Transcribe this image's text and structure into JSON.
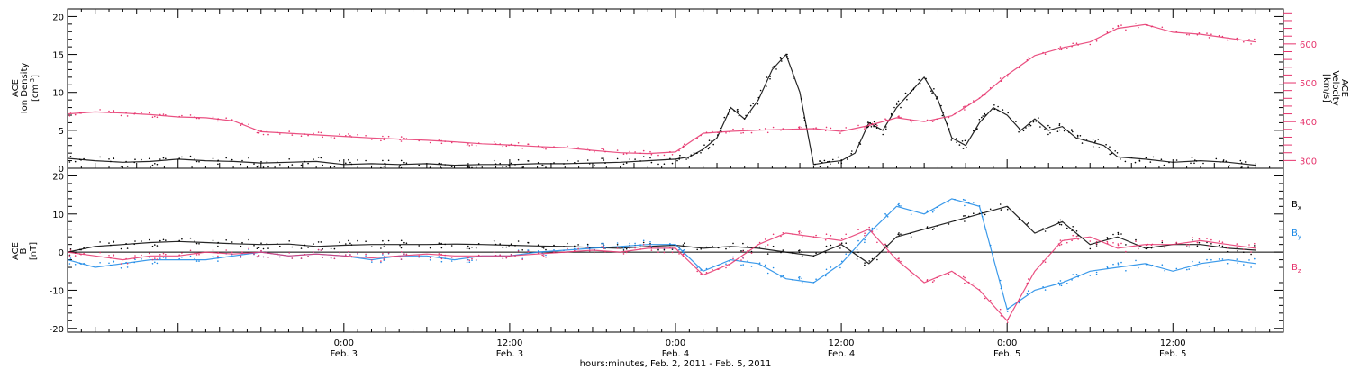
{
  "chart_data": [
    {
      "type": "line",
      "panel": "top",
      "left_axis": {
        "label_lines": [
          "ACE",
          "Ion Density"
        ],
        "unit_text": "[cm",
        "unit_sup": "-3",
        "unit_close": "]",
        "range": [
          0,
          21
        ],
        "ticks": [
          0,
          5,
          10,
          15,
          20
        ],
        "tick_labels": [
          "0",
          "5",
          "10",
          "15",
          "20"
        ]
      },
      "right_axis": {
        "label_lines": [
          "ACE",
          "Velocity",
          "[km/s]"
        ],
        "range": [
          280,
          690
        ],
        "ticks": [
          300,
          400,
          500,
          600
        ],
        "tick_labels": [
          "300",
          "400",
          "500",
          "600"
        ],
        "color": "#e6336c"
      },
      "x_range_hours": [
        -20,
        68
      ],
      "series": [
        {
          "color": "#000000",
          "axis": "left",
          "x": [
            -20,
            -18,
            -16,
            -14,
            -12,
            -10,
            -8,
            -6,
            -4,
            -2,
            0,
            2,
            4,
            6,
            8,
            10,
            12,
            14,
            16,
            18,
            20,
            22,
            24,
            25,
            26,
            27,
            28,
            29,
            30,
            31,
            32,
            33,
            34,
            35,
            36,
            37,
            38,
            39,
            40,
            41,
            42,
            43,
            44,
            45,
            46,
            47,
            48,
            49,
            50,
            51,
            52,
            53,
            54,
            55,
            56,
            58,
            60,
            62,
            64,
            66
          ],
          "values": [
            1.3,
            1.0,
            0.8,
            0.9,
            1.2,
            1.0,
            0.9,
            0.7,
            0.8,
            0.9,
            0.5,
            0.6,
            0.5,
            0.6,
            0.4,
            0.5,
            0.5,
            0.6,
            0.6,
            0.7,
            0.8,
            1.0,
            1.2,
            1.5,
            2.5,
            4.0,
            8.0,
            6.5,
            9.0,
            13.0,
            15.0,
            10.0,
            0.5,
            0.8,
            1.0,
            2.0,
            6.0,
            5.0,
            8.0,
            10.0,
            12.0,
            9.0,
            4.0,
            3.0,
            6.0,
            8.0,
            7.0,
            5.0,
            6.5,
            5.0,
            5.5,
            4.0,
            3.5,
            3.0,
            1.5,
            1.2,
            0.8,
            1.0,
            0.8,
            0.4
          ]
        },
        {
          "color": "#e6336c",
          "axis": "right",
          "x": [
            -20,
            -18,
            -16,
            -14,
            -12,
            -10,
            -8,
            -6,
            -4,
            -2,
            0,
            2,
            4,
            6,
            8,
            10,
            12,
            14,
            16,
            18,
            20,
            22,
            24,
            26,
            28,
            30,
            32,
            34,
            36,
            38,
            40,
            42,
            44,
            46,
            48,
            50,
            52,
            54,
            56,
            58,
            60,
            62,
            64,
            66
          ],
          "values": [
            420,
            425,
            422,
            418,
            412,
            410,
            402,
            374,
            370,
            366,
            362,
            358,
            355,
            352,
            348,
            343,
            340,
            336,
            333,
            326,
            320,
            318,
            322,
            370,
            375,
            378,
            380,
            382,
            375,
            390,
            410,
            400,
            415,
            460,
            520,
            570,
            590,
            605,
            640,
            650,
            630,
            625,
            615,
            605
          ]
        }
      ]
    },
    {
      "type": "line",
      "panel": "bottom",
      "left_axis": {
        "label_lines": [
          "ACE",
          "B",
          "[nT]"
        ],
        "range": [
          -21,
          22
        ],
        "ticks": [
          -20,
          -10,
          0,
          10,
          20
        ],
        "tick_labels": [
          "-20",
          "-10",
          "0",
          "10",
          "20"
        ]
      },
      "x_range_hours": [
        -20,
        68
      ],
      "series": [
        {
          "name": "B",
          "sub": "x",
          "color": "#000000",
          "x": [
            -20,
            -18,
            -16,
            -14,
            -12,
            -10,
            -8,
            -6,
            -4,
            -2,
            0,
            2,
            4,
            6,
            8,
            10,
            12,
            14,
            16,
            18,
            20,
            22,
            24,
            26,
            28,
            30,
            32,
            34,
            36,
            38,
            40,
            42,
            44,
            46,
            48,
            50,
            52,
            54,
            56,
            58,
            60,
            62,
            64,
            66
          ],
          "values": [
            0,
            1.5,
            2,
            2.5,
            2.8,
            2.5,
            2.2,
            2.0,
            2.1,
            1.5,
            1.8,
            2.0,
            2.0,
            2.0,
            2.1,
            2.0,
            1.8,
            1.6,
            1.5,
            1.2,
            1.0,
            1.5,
            1.8,
            1.0,
            1.5,
            1.0,
            0,
            -1,
            2,
            -3,
            4,
            6,
            8,
            10,
            12,
            5,
            8,
            2,
            4,
            1,
            2,
            2,
            1,
            0.5
          ]
        },
        {
          "name": "B",
          "sub": "y",
          "color": "#1a88e6",
          "x": [
            -20,
            -18,
            -16,
            -14,
            -12,
            -10,
            -8,
            -6,
            -4,
            -2,
            0,
            2,
            4,
            6,
            8,
            10,
            12,
            14,
            16,
            18,
            20,
            22,
            24,
            26,
            28,
            30,
            32,
            34,
            36,
            38,
            40,
            42,
            44,
            46,
            48,
            50,
            52,
            54,
            56,
            58,
            60,
            62,
            64,
            66
          ],
          "values": [
            -2,
            -4,
            -3,
            -2,
            -2,
            -2,
            -1,
            0,
            -1,
            -0.5,
            -1,
            -2,
            -1,
            -1,
            -2,
            -1,
            -1,
            0,
            0.5,
            1,
            1.5,
            2,
            2,
            -5,
            -2,
            -3,
            -7,
            -8,
            -3,
            5,
            12,
            10,
            14,
            12,
            -15,
            -10,
            -8,
            -5,
            -4,
            -3,
            -5,
            -3,
            -2,
            -3
          ]
        },
        {
          "name": "B",
          "sub": "z",
          "color": "#e6336c",
          "x": [
            -20,
            -18,
            -16,
            -14,
            -12,
            -10,
            -8,
            -6,
            -4,
            -2,
            0,
            2,
            4,
            6,
            8,
            10,
            12,
            14,
            16,
            18,
            20,
            22,
            24,
            26,
            28,
            30,
            32,
            34,
            36,
            38,
            40,
            42,
            44,
            46,
            48,
            50,
            52,
            54,
            56,
            58,
            60,
            62,
            64,
            66
          ],
          "values": [
            0,
            -1,
            -2,
            -1,
            -1,
            0,
            -0.5,
            0,
            -1,
            -0.5,
            -1,
            -1.5,
            -1,
            -0.5,
            -1,
            -1,
            -1,
            -0.5,
            0,
            0.5,
            0,
            1,
            1,
            -6,
            -3,
            2,
            5,
            4,
            3,
            6,
            -2,
            -8,
            -5,
            -10,
            -18,
            -5,
            3,
            4,
            1,
            2,
            2,
            3,
            2,
            1
          ]
        }
      ],
      "zero_line": 0
    }
  ],
  "x_axis": {
    "tick_hours": [
      0,
      12,
      24,
      36,
      48,
      60
    ],
    "tick_times": [
      "0:00",
      "12:00",
      "0:00",
      "12:00",
      "0:00",
      "12:00"
    ],
    "tick_dates": [
      "Feb. 3",
      "Feb. 3",
      "Feb. 4",
      "Feb. 4",
      "Feb. 5",
      "Feb. 5"
    ],
    "label": "hours:minutes, Feb.  2, 2011 - Feb.  5, 2011"
  },
  "legend": {
    "labels": [
      {
        "main": "B",
        "sub": "x",
        "color": "#000000"
      },
      {
        "main": "B",
        "sub": "y",
        "color": "#1a88e6"
      },
      {
        "main": "B",
        "sub": "z",
        "color": "#e6336c"
      }
    ]
  }
}
